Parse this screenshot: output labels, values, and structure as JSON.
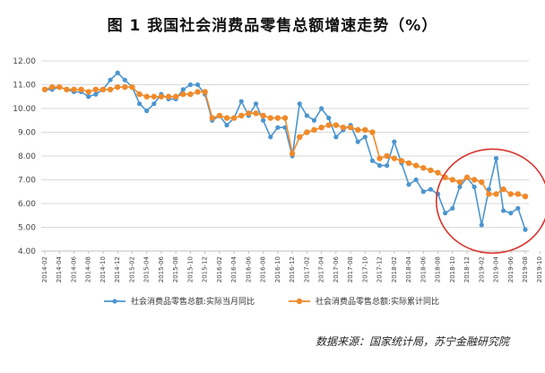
{
  "chart_data": {
    "type": "line",
    "title": "图 1    我国社会消费品零售总额增速走势（%）",
    "source_text": "数据来源：国家统计局，苏宁金融研究院",
    "ylim": [
      4.0,
      12.0
    ],
    "y_ticks": [
      "12.00",
      "11.00",
      "10.00",
      "9.00",
      "8.00",
      "7.00",
      "6.00",
      "5.00",
      "4.00"
    ],
    "y_tick_values": [
      12,
      11,
      10,
      9,
      8,
      7,
      6,
      5,
      4
    ],
    "x_ticks": [
      "2014-02",
      "2014-04",
      "2014-06",
      "2014-08",
      "2014-10",
      "2014-12",
      "2015-02",
      "2015-04",
      "2015-06",
      "2015-08",
      "2015-10",
      "2015-12",
      "2016-02",
      "2016-04",
      "2016-06",
      "2016-08",
      "2016-10",
      "2016-12",
      "2017-02",
      "2017-04",
      "2017-06",
      "2017-08",
      "2017-10",
      "2017-12",
      "2018-02",
      "2018-04",
      "2018-06",
      "2018-08",
      "2018-10",
      "2018-12",
      "2019-02",
      "2019-04",
      "2019-06",
      "2019-08",
      "2019-10"
    ],
    "colors": {
      "monthly": "#4b95cf",
      "cumulative": "#f08a2a",
      "circle": "#d9332c",
      "grid": "#d9d9d9",
      "axis": "#bfbfbf"
    },
    "series": [
      {
        "name": "社会消费品零售总额:实际当月同比",
        "values": [
          10.8,
          10.8,
          10.9,
          10.8,
          10.7,
          10.7,
          10.5,
          10.6,
          10.8,
          11.2,
          11.5,
          11.2,
          10.9,
          10.2,
          9.9,
          10.2,
          10.6,
          10.4,
          10.4,
          10.8,
          11.0,
          11.0,
          10.6,
          9.5,
          9.7,
          9.3,
          9.6,
          10.3,
          9.7,
          10.2,
          9.5,
          8.8,
          9.2,
          9.2,
          8.0,
          10.2,
          9.7,
          9.5,
          10.0,
          9.6,
          8.8,
          9.1,
          9.3,
          8.6,
          8.8,
          7.8,
          7.6,
          7.6,
          8.6,
          7.7,
          6.8,
          7.0,
          6.5,
          6.6,
          6.4,
          5.6,
          5.8,
          6.7,
          7.1,
          6.7,
          5.1,
          6.6,
          7.9,
          5.7,
          5.6,
          5.8,
          4.9
        ]
      },
      {
        "name": "社会消费品零售总额:实际累计同比",
        "values": [
          10.8,
          10.9,
          10.9,
          10.8,
          10.8,
          10.8,
          10.7,
          10.8,
          10.8,
          10.8,
          10.9,
          10.9,
          10.9,
          10.6,
          10.5,
          10.5,
          10.5,
          10.5,
          10.5,
          10.6,
          10.6,
          10.7,
          10.7,
          9.6,
          9.7,
          9.6,
          9.6,
          9.7,
          9.8,
          9.8,
          9.7,
          9.6,
          9.6,
          9.6,
          8.1,
          8.8,
          9.0,
          9.1,
          9.2,
          9.3,
          9.3,
          9.2,
          9.2,
          9.1,
          9.1,
          9.0,
          7.9,
          8.0,
          7.9,
          7.8,
          7.7,
          7.6,
          7.5,
          7.4,
          7.3,
          7.1,
          7.0,
          6.9,
          7.1,
          7.0,
          6.9,
          6.4,
          6.4,
          6.6,
          6.4,
          6.4,
          6.3
        ]
      }
    ],
    "legend_position": "bottom"
  }
}
